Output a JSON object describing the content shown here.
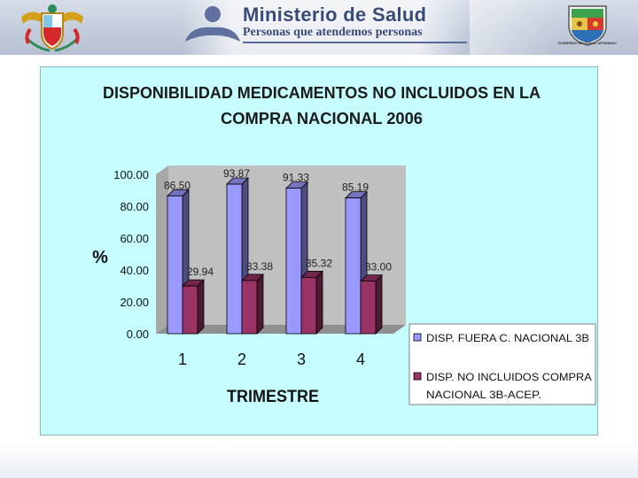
{
  "header": {
    "ministry_title": "Ministerio de Salud",
    "tagline": "Personas que atendemos personas",
    "regional_caption": "GOBIERNO REGIONAL APURIMAC",
    "colors": {
      "banner": "#c3ccdb",
      "title_text": "#3a4a78"
    },
    "icons": [
      "coat-of-arms-peru-icon",
      "person-icon",
      "regional-coat-of-arms-icon"
    ]
  },
  "chart_data": {
    "type": "bar",
    "title_line1": "DISPONIBILIDAD  MEDICAMENTOS NO INCLUIDOS EN LA",
    "title_line2": "COMPRA NACIONAL 2006",
    "xlabel": "TRIMESTRE",
    "ylabel": "%",
    "categories": [
      "1",
      "2",
      "3",
      "4"
    ],
    "ylim": [
      0,
      100
    ],
    "yticks": [
      "0.00",
      "20.00",
      "40.00",
      "60.00",
      "80.00",
      "100.00"
    ],
    "grid": false,
    "legend_position": "bottom-right",
    "three_d": true,
    "series": [
      {
        "name": "DISP. FUERA C. NACIONAL 3B",
        "values": [
          86.5,
          93.87,
          91.33,
          85.19
        ],
        "labels": [
          "86.50",
          "93.87",
          "91.33",
          "85.19"
        ],
        "color": "#9999ff"
      },
      {
        "name": "DISP. NO INCLUIDOS COMPRA NACIONAL 3B-ACEP.",
        "values": [
          29.94,
          33.38,
          35.32,
          33.0
        ],
        "labels": [
          "29.94",
          "33.38",
          "35.32",
          "33.00"
        ],
        "color": "#993366"
      }
    ],
    "colors": {
      "panel_background": "#c6feff",
      "plot_wall": "#c0c0c0"
    }
  }
}
